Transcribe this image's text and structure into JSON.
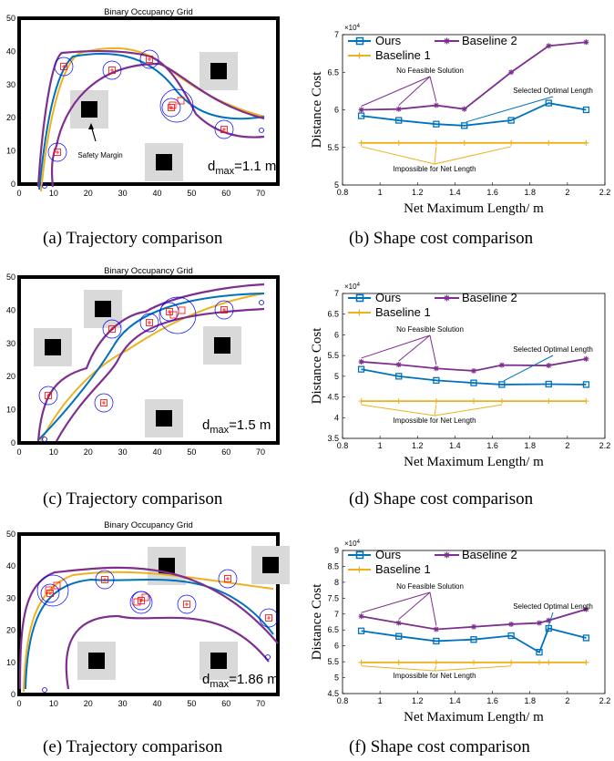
{
  "figure": {
    "rows": [
      {
        "left": {
          "title": "Binary Occupancy Grid",
          "caption": "(a) Trajectory comparison",
          "annotation": "Safety Margin",
          "dmax_prefix": "d",
          "dmax_sub": "max",
          "dmax_value": "=1.1 m",
          "x_ticks": [
            "0",
            "10",
            "20",
            "30",
            "40",
            "50",
            "60",
            "70"
          ],
          "y_ticks": [
            "0",
            "10",
            "20",
            "30",
            "40",
            "50"
          ]
        },
        "right": {
          "caption": "(b) Shape cost comparison",
          "exponent": "×10",
          "exponent_power": "4",
          "ylabel": "Distance Cost",
          "xlabel": "Net Maximum Length/ m",
          "annotations": {
            "no_feasible": "No Feasible Solution",
            "selected": "Selected Optimal Length",
            "impossible": "Impossible for Net Length"
          }
        }
      },
      {
        "left": {
          "title": "Binary Occupancy Grid",
          "caption": "(c) Trajectory comparison",
          "dmax_prefix": "d",
          "dmax_sub": "max",
          "dmax_value": "=1.5 m",
          "x_ticks": [
            "0",
            "10",
            "20",
            "30",
            "40",
            "50",
            "60",
            "70"
          ],
          "y_ticks": [
            "0",
            "10",
            "20",
            "30",
            "40",
            "50"
          ]
        },
        "right": {
          "caption": "(d) Shape cost comparison",
          "exponent": "×10",
          "exponent_power": "4",
          "ylabel": "Distance Cost",
          "xlabel": "Net Maximum Length/ m",
          "annotations": {
            "no_feasible": "No Feasible Solution",
            "selected": "Selected Optimal Length",
            "impossible": "Impossible for Net Length"
          }
        }
      },
      {
        "left": {
          "title": "Binary Occupancy Grid",
          "caption": "(e) Trajectory comparison",
          "dmax_prefix": "d",
          "dmax_sub": "max",
          "dmax_value": "=1.86 m",
          "x_ticks": [
            "0",
            "10",
            "20",
            "30",
            "40",
            "50",
            "60",
            "70"
          ],
          "y_ticks": [
            "0",
            "10",
            "20",
            "30",
            "40",
            "50"
          ]
        },
        "right": {
          "caption": "(f) Shape cost comparison",
          "exponent": "×10",
          "exponent_power": "4",
          "ylabel": "Distance Cost",
          "xlabel": "Net Maximum Length/ m",
          "annotations": {
            "no_feasible": "No Feasible Solution",
            "selected": "Selected Optimal Length",
            "impossible": "Impossible for Net Length"
          }
        }
      }
    ]
  },
  "colors": {
    "ours": "#0072BD",
    "baseline1": "#EDB120",
    "baseline2": "#7E2F8E",
    "marker_red": "#FF0000",
    "circle_blue": "#0000FF"
  },
  "chart_data": [
    {
      "type": "line",
      "x": [
        0.9,
        1.1,
        1.3,
        1.45,
        1.7,
        1.9,
        2.1
      ],
      "xlim": [
        0.8,
        2.2
      ],
      "ylim": [
        5,
        7
      ],
      "x_ticks": [
        "0.8",
        "1",
        "1.2",
        "1.4",
        "1.6",
        "1.8",
        "2",
        "2.2"
      ],
      "y_ticks": [
        "5",
        "5.5",
        "6",
        "6.5",
        "7"
      ],
      "series": [
        {
          "name": "Ours",
          "values": [
            5.92,
            5.86,
            5.81,
            5.79,
            5.86,
            6.09,
            6.0
          ]
        },
        {
          "name": "Baseline 2",
          "values": [
            6.0,
            6.01,
            6.06,
            6.01,
            6.5,
            6.85,
            6.9
          ]
        },
        {
          "name": "Baseline 1",
          "values": [
            5.56,
            5.56,
            5.56,
            5.56,
            5.56,
            5.56,
            5.56
          ]
        }
      ]
    },
    {
      "type": "line",
      "x": [
        0.9,
        1.1,
        1.3,
        1.5,
        1.65,
        1.9,
        2.1
      ],
      "xlim": [
        0.8,
        2.2
      ],
      "ylim": [
        3.5,
        7
      ],
      "x_ticks": [
        "0.8",
        "1",
        "1.2",
        "1.4",
        "1.6",
        "1.8",
        "2",
        "2.2"
      ],
      "y_ticks": [
        "3.5",
        "4",
        "4.5",
        "5",
        "5.5",
        "6",
        "6.5",
        "7"
      ],
      "series": [
        {
          "name": "Ours",
          "values": [
            5.17,
            5.0,
            4.9,
            4.84,
            4.8,
            4.81,
            4.8
          ]
        },
        {
          "name": "Baseline 2",
          "values": [
            5.35,
            5.28,
            5.19,
            5.13,
            5.27,
            5.26,
            5.42
          ]
        },
        {
          "name": "Baseline 1",
          "values": [
            4.4,
            4.4,
            4.4,
            4.4,
            4.4,
            4.4,
            4.4
          ]
        }
      ]
    },
    {
      "type": "line",
      "x": [
        0.9,
        1.1,
        1.3,
        1.5,
        1.7,
        1.85,
        1.9,
        2.1
      ],
      "xlim": [
        0.8,
        2.2
      ],
      "ylim": [
        4.5,
        9
      ],
      "x_ticks": [
        "0.8",
        "1",
        "1.2",
        "1.4",
        "1.6",
        "1.8",
        "2",
        "2.2"
      ],
      "y_ticks": [
        "4.5",
        "5",
        "5.5",
        "6",
        "6.5",
        "7",
        "7.5",
        "8",
        "8.5",
        "9"
      ],
      "series": [
        {
          "name": "Ours",
          "values": [
            6.47,
            6.3,
            6.15,
            6.2,
            6.32,
            5.8,
            6.55,
            6.25
          ]
        },
        {
          "name": "Baseline 2",
          "values": [
            6.93,
            6.72,
            6.52,
            6.6,
            6.68,
            6.72,
            6.8,
            7.15
          ]
        },
        {
          "name": "Baseline 1",
          "values": [
            5.48,
            5.48,
            5.48,
            5.48,
            5.48,
            5.48,
            5.48,
            5.48
          ]
        }
      ]
    }
  ]
}
